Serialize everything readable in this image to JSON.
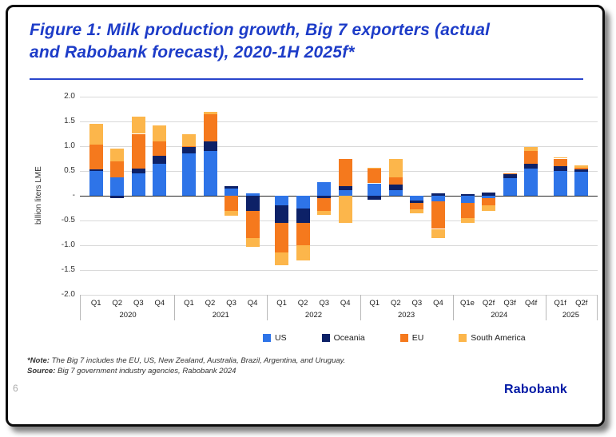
{
  "title": "Figure 1: Milk production growth, Big 7 exporters (actual and Rabobank forecast), 2020-1H 2025f*",
  "title_lines": [
    "Figure 1: Milk production growth, Big 7 exporters (actual",
    "and Rabobank forecast), 2020-1H 2025f*"
  ],
  "notes": {
    "note_prefix": "*Note:",
    "note_text": " The Big 7 includes the EU, US, New Zealand, Australia, Brazil, Argentina, and Uruguay.",
    "source_prefix": "Source:",
    "source_text": " Big 7 government industry agencies, Rabobank 2024"
  },
  "footer": {
    "page_number": "6",
    "brand": "Rabobank"
  },
  "theme": {
    "title_color": "#1d3cc8",
    "rule_color": "#2a46cc",
    "brand_color": "#0019a5",
    "grid_color": "#d9d9d9",
    "zero_line_color": "#262626"
  },
  "chart_data": {
    "type": "bar",
    "stacked": true,
    "title": "Milk production growth, Big 7 exporters (actual and Rabobank forecast), 2020-1H 2025f",
    "xlabel": "",
    "ylabel": "billion liters LME",
    "ylim": [
      -2.0,
      2.0
    ],
    "ytick_step": 0.5,
    "grid": true,
    "legend_position": "bottom",
    "yticks": [
      {
        "label": "2.0",
        "value": 2.0
      },
      {
        "label": "1.5",
        "value": 1.5
      },
      {
        "label": "1.0",
        "value": 1.0
      },
      {
        "label": "0.5",
        "value": 0.5
      },
      {
        "label": "-",
        "value": 0.0
      },
      {
        "label": "-0.5",
        "value": -0.5
      },
      {
        "label": "-1.0",
        "value": -1.0
      },
      {
        "label": "-1.5",
        "value": -1.5
      },
      {
        "label": "-2.0",
        "value": -2.0
      }
    ],
    "groups": [
      {
        "year": "2020",
        "quarters": [
          "Q1",
          "Q2",
          "Q3",
          "Q4"
        ]
      },
      {
        "year": "2021",
        "quarters": [
          "Q1",
          "Q2",
          "Q3",
          "Q4"
        ]
      },
      {
        "year": "2022",
        "quarters": [
          "Q1",
          "Q2",
          "Q3",
          "Q4"
        ]
      },
      {
        "year": "2023",
        "quarters": [
          "Q1",
          "Q2",
          "Q3",
          "Q4"
        ]
      },
      {
        "year": "2024",
        "quarters": [
          "Q1e",
          "Q2f",
          "Q3f",
          "Q4f"
        ]
      },
      {
        "year": "2025",
        "quarters": [
          "Q1f",
          "Q2f"
        ]
      }
    ],
    "categories": [
      "Q1 2020",
      "Q2 2020",
      "Q3 2020",
      "Q4 2020",
      "Q1 2021",
      "Q2 2021",
      "Q3 2021",
      "Q4 2021",
      "Q1 2022",
      "Q2 2022",
      "Q3 2022",
      "Q4 2022",
      "Q1 2023",
      "Q2 2023",
      "Q3 2023",
      "Q4 2023",
      "Q1e 2024",
      "Q2f 2024",
      "Q3f 2024",
      "Q4f 2024",
      "Q1f 2025",
      "Q2f 2025"
    ],
    "series": [
      {
        "name": "US",
        "color": "#2e74e8",
        "values": [
          0.5,
          0.37,
          0.45,
          0.65,
          0.85,
          0.9,
          0.15,
          0.05,
          -0.2,
          -0.25,
          0.28,
          0.12,
          0.25,
          0.12,
          -0.1,
          -0.12,
          -0.15,
          -0.05,
          0.35,
          0.55,
          0.5,
          0.48
        ]
      },
      {
        "name": "Oceania",
        "color": "#0d2167",
        "values": [
          0.03,
          -0.05,
          0.1,
          0.15,
          0.13,
          0.2,
          0.05,
          -0.3,
          -0.35,
          -0.3,
          -0.05,
          0.08,
          -0.08,
          0.1,
          -0.05,
          0.05,
          0.04,
          0.06,
          0.08,
          0.1,
          0.1,
          0.05
        ]
      },
      {
        "name": "EU",
        "color": "#f5791d",
        "values": [
          0.5,
          0.33,
          0.7,
          0.3,
          0.02,
          0.55,
          -0.3,
          -0.55,
          -0.6,
          -0.45,
          -0.25,
          0.55,
          0.3,
          0.15,
          -0.12,
          -0.55,
          -0.3,
          -0.15,
          0.02,
          0.25,
          0.15,
          0.03
        ]
      },
      {
        "name": "South America",
        "color": "#fcb64b",
        "values": [
          0.42,
          0.25,
          0.35,
          0.32,
          0.25,
          0.05,
          -0.1,
          -0.18,
          -0.25,
          -0.3,
          -0.08,
          -0.55,
          0.02,
          0.38,
          -0.08,
          -0.18,
          -0.1,
          -0.1,
          0.0,
          0.08,
          0.03,
          0.05
        ]
      }
    ]
  }
}
